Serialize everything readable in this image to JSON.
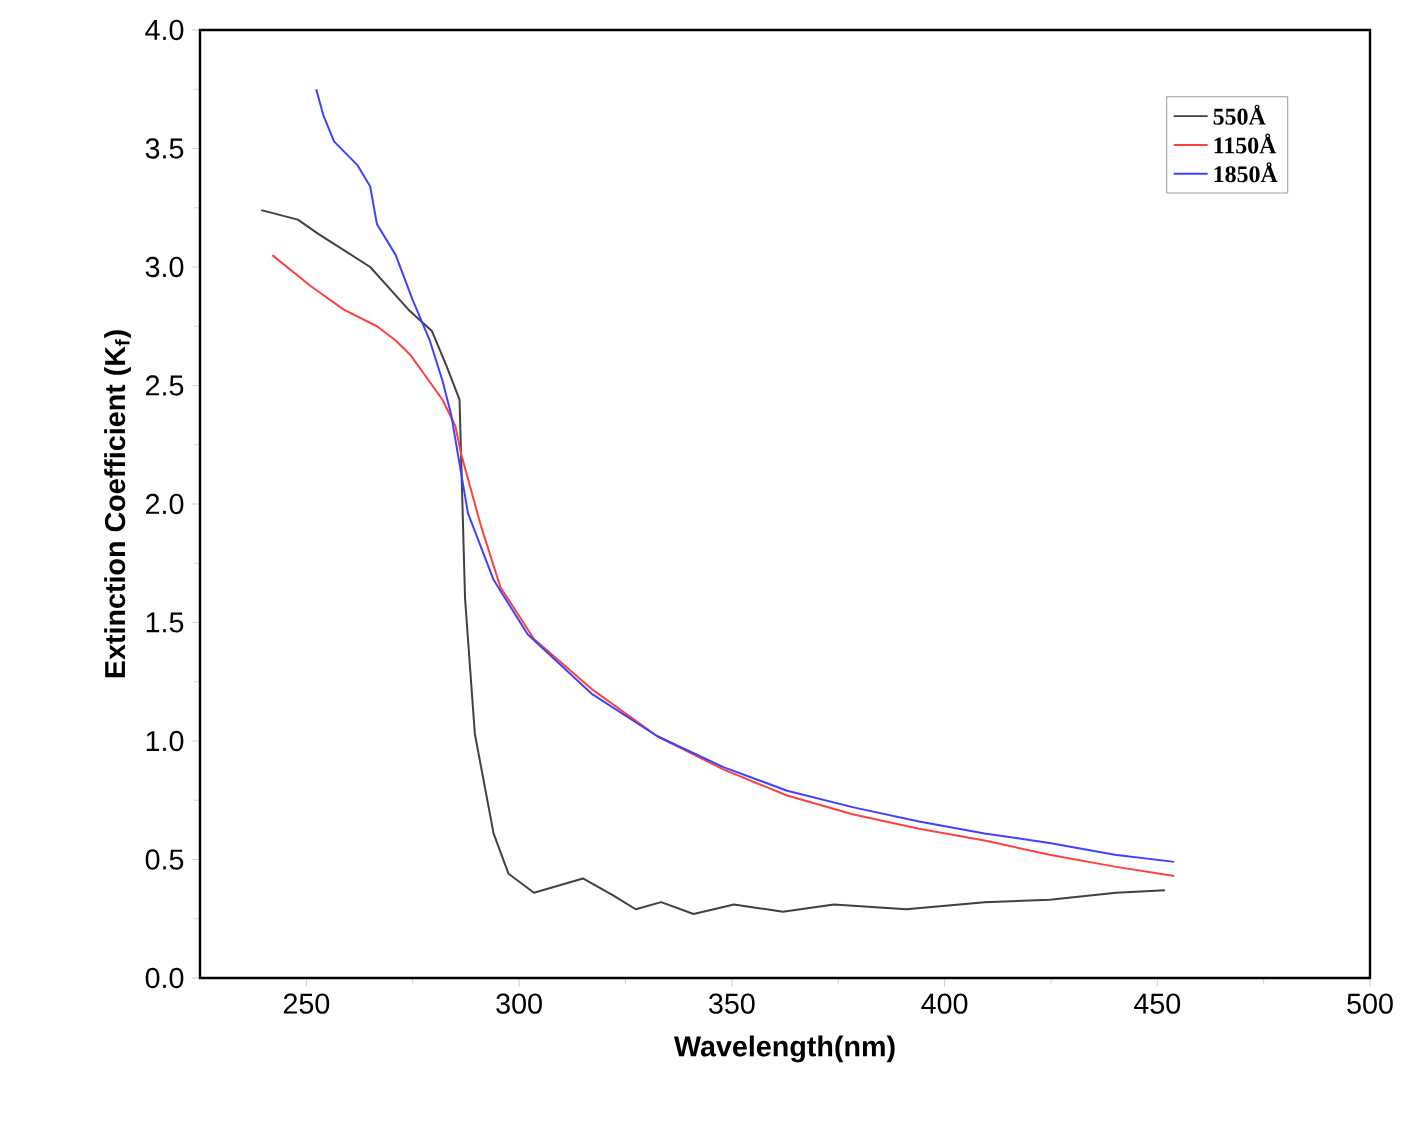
{
  "chart_data": {
    "type": "line",
    "xlabel": "Wavelength(nm)",
    "ylabel": "Extinction Coefficient (K$_{f}$)",
    "xlim": [
      225,
      500
    ],
    "ylim": [
      0,
      4
    ],
    "xticks": [
      250,
      300,
      350,
      400,
      450,
      500
    ],
    "yticks": [
      {
        "value": 0,
        "label": "0.0"
      },
      {
        "value": 0.5,
        "label": "0.5"
      },
      {
        "value": 1,
        "label": "1.0"
      },
      {
        "value": 1.5,
        "label": "1.5"
      },
      {
        "value": 2,
        "label": "2.0"
      },
      {
        "value": 2.5,
        "label": "2.5"
      },
      {
        "value": 3,
        "label": "3.0"
      },
      {
        "value": 3.5,
        "label": "3.5"
      },
      {
        "value": 4,
        "label": "4.0"
      }
    ],
    "grid": false,
    "legend": "top right",
    "series": [
      {
        "name": "550Å",
        "color": "#404040",
        "x": [
          239.4,
          248,
          252.8,
          265,
          270,
          274,
          279.5,
          283,
          286,
          287.3,
          289.6,
          294,
          297.5,
          303.5,
          315,
          322,
          327.4,
          333.4,
          341,
          350.5,
          362,
          374,
          391,
          409.4,
          424.7,
          440.3,
          451.8
        ],
        "values": [
          3.24,
          3.2,
          3.14,
          3.0,
          2.9,
          2.82,
          2.73,
          2.58,
          2.44,
          1.6,
          1.03,
          0.61,
          0.44,
          0.36,
          0.42,
          0.35,
          0.29,
          0.32,
          0.27,
          0.31,
          0.28,
          0.31,
          0.29,
          0.32,
          0.33,
          0.36,
          0.37
        ]
      },
      {
        "name": "1150Å",
        "color": "#ff4040",
        "x": [
          242,
          251,
          258.8,
          266.6,
          271,
          274.4,
          278,
          282,
          285,
          286.4,
          291,
          295.6,
          303.5,
          317,
          332.5,
          348,
          363,
          378.6,
          394,
          409.4,
          424.7,
          440,
          454
        ],
        "values": [
          3.05,
          2.92,
          2.82,
          2.75,
          2.69,
          2.63,
          2.54,
          2.44,
          2.33,
          2.21,
          1.91,
          1.65,
          1.43,
          1.22,
          1.02,
          0.88,
          0.77,
          0.69,
          0.63,
          0.58,
          0.52,
          0.47,
          0.43
        ]
      },
      {
        "name": "1850Å",
        "color": "#4040ff",
        "x": [
          252.3,
          254,
          256.5,
          262,
          265,
          266.6,
          271,
          275,
          279,
          282,
          284,
          288,
          294,
          302,
          317,
          332.5,
          348,
          363,
          378.6,
          394,
          409.4,
          424.7,
          440,
          454
        ],
        "values": [
          3.75,
          3.64,
          3.53,
          3.43,
          3.34,
          3.18,
          3.05,
          2.86,
          2.69,
          2.52,
          2.38,
          1.96,
          1.68,
          1.45,
          1.2,
          1.02,
          0.89,
          0.79,
          0.72,
          0.66,
          0.61,
          0.57,
          0.52,
          0.49
        ]
      }
    ]
  }
}
